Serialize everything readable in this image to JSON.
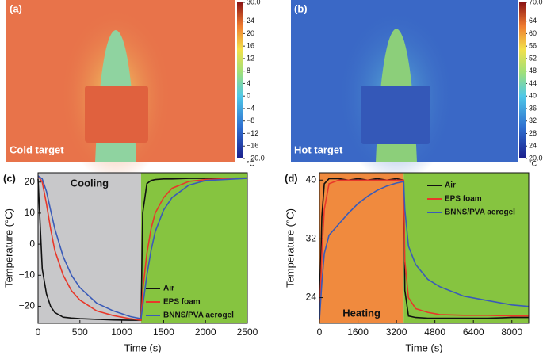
{
  "chart_data": [
    {
      "type": "thermal-image",
      "panel_label": "(a)",
      "caption": "Cold target",
      "colorbar_unit": "°C",
      "ylim": [
        -20,
        30
      ],
      "yticks": [
        {
          "value": 30,
          "label": "30.0"
        },
        24,
        20,
        16,
        12,
        8,
        4,
        0,
        {
          "value": -4,
          "label": "−4"
        },
        {
          "value": -8,
          "label": "−8"
        },
        {
          "value": -12,
          "label": "−12"
        },
        {
          "value": -16,
          "label": "−16"
        },
        {
          "value": -20,
          "label": "−20.0"
        }
      ]
    },
    {
      "type": "thermal-image",
      "panel_label": "(b)",
      "caption": "Hot target",
      "colorbar_unit": "°C",
      "ylim": [
        20,
        70
      ],
      "yticks": [
        {
          "value": 70,
          "label": "70.0"
        },
        64,
        60,
        56,
        52,
        48,
        44,
        40,
        36,
        32,
        28,
        24,
        {
          "value": 20,
          "label": "20.0"
        }
      ]
    },
    {
      "type": "line",
      "panel_label": "(c)",
      "annotation": "Cooling",
      "xlabel": "Time (s)",
      "ylabel": "Temperature (°C)",
      "x": [
        0,
        50,
        100,
        150,
        200,
        300,
        400,
        500,
        700,
        900,
        1100,
        1230,
        1250,
        1300,
        1350,
        1400,
        1500,
        1600,
        1800,
        2000,
        2500
      ],
      "xlim": [
        0,
        2500
      ],
      "xticks": [
        0,
        500,
        1000,
        1500,
        2000,
        2500
      ],
      "ylim": [
        -25.5,
        23
      ],
      "yticks": [
        {
          "value": -20,
          "label": "−20"
        },
        {
          "value": -10,
          "label": "−10"
        },
        0,
        10,
        20
      ],
      "regions": [
        {
          "from": 0,
          "to": 1230,
          "color": "#c8c8ca"
        },
        {
          "from": 1230,
          "to": 2500,
          "color": "#86c440"
        }
      ],
      "legend": "lower right",
      "series": [
        {
          "name": "Air",
          "color": "#111111",
          "values": [
            21,
            -8,
            -16,
            -20,
            -22,
            -23.5,
            -23.8,
            -24,
            -24.2,
            -24.4,
            -24.5,
            -24.5,
            10,
            19.5,
            20.5,
            20.8,
            21,
            21,
            21.2,
            21.2,
            21.3
          ]
        },
        {
          "name": "EPS foam",
          "color": "#e8382a",
          "values": [
            22,
            20,
            13,
            5,
            -2,
            -10,
            -15,
            -18,
            -21.5,
            -23,
            -24,
            -24.5,
            -15,
            -3,
            5,
            10,
            15,
            18,
            20.2,
            20.8,
            21.3
          ]
        },
        {
          "name": "BNNS/PVA aerogel",
          "color": "#3a5bb8",
          "values": [
            22,
            21,
            17,
            11,
            5,
            -4,
            -10,
            -14,
            -19,
            -21.5,
            -23.3,
            -24,
            -20,
            -10,
            -2,
            4,
            11,
            15,
            19,
            20.5,
            21.2
          ]
        }
      ]
    },
    {
      "type": "line",
      "panel_label": "(d)",
      "annotation": "Heating",
      "xlabel": "Time (s)",
      "ylabel": "Temperature (°C)",
      "x": [
        0,
        100,
        200,
        400,
        800,
        1200,
        1600,
        2000,
        2400,
        2800,
        3200,
        3500,
        3550,
        3700,
        4000,
        4500,
        5000,
        6000,
        7000,
        8000,
        8700
      ],
      "xlim": [
        0,
        8700
      ],
      "xticks": [
        0,
        1600,
        3200,
        4800,
        6400,
        8000
      ],
      "ylim": [
        20.5,
        41
      ],
      "yticks": [
        24,
        32,
        40
      ],
      "regions": [
        {
          "from": 0,
          "to": 3500,
          "color": "#f08a3e"
        },
        {
          "from": 3500,
          "to": 8700,
          "color": "#86c440"
        }
      ],
      "legend": "upper right",
      "series": [
        {
          "name": "Air",
          "color": "#111111",
          "values": [
            21,
            35,
            39.5,
            40.2,
            40.2,
            40,
            40.2,
            40,
            40.2,
            40,
            40.2,
            40,
            25,
            21.5,
            21.3,
            21.2,
            21.2,
            21.2,
            21.2,
            21.3,
            21.3
          ]
        },
        {
          "name": "EPS foam",
          "color": "#e8382a",
          "values": [
            21,
            30,
            36,
            39.5,
            40,
            40,
            40,
            40,
            40,
            40,
            40,
            40,
            29,
            24,
            22.5,
            22,
            21.7,
            21.6,
            21.6,
            21.5,
            21.5
          ]
        },
        {
          "name": "BNNS/PVA aerogel",
          "color": "#3a5bb8",
          "values": [
            21,
            26,
            30,
            32.5,
            34,
            35.5,
            36.8,
            37.8,
            38.6,
            39.2,
            39.6,
            39.8,
            36,
            31,
            28.5,
            26.5,
            25.5,
            24.2,
            23.6,
            23,
            22.8
          ]
        }
      ]
    }
  ]
}
